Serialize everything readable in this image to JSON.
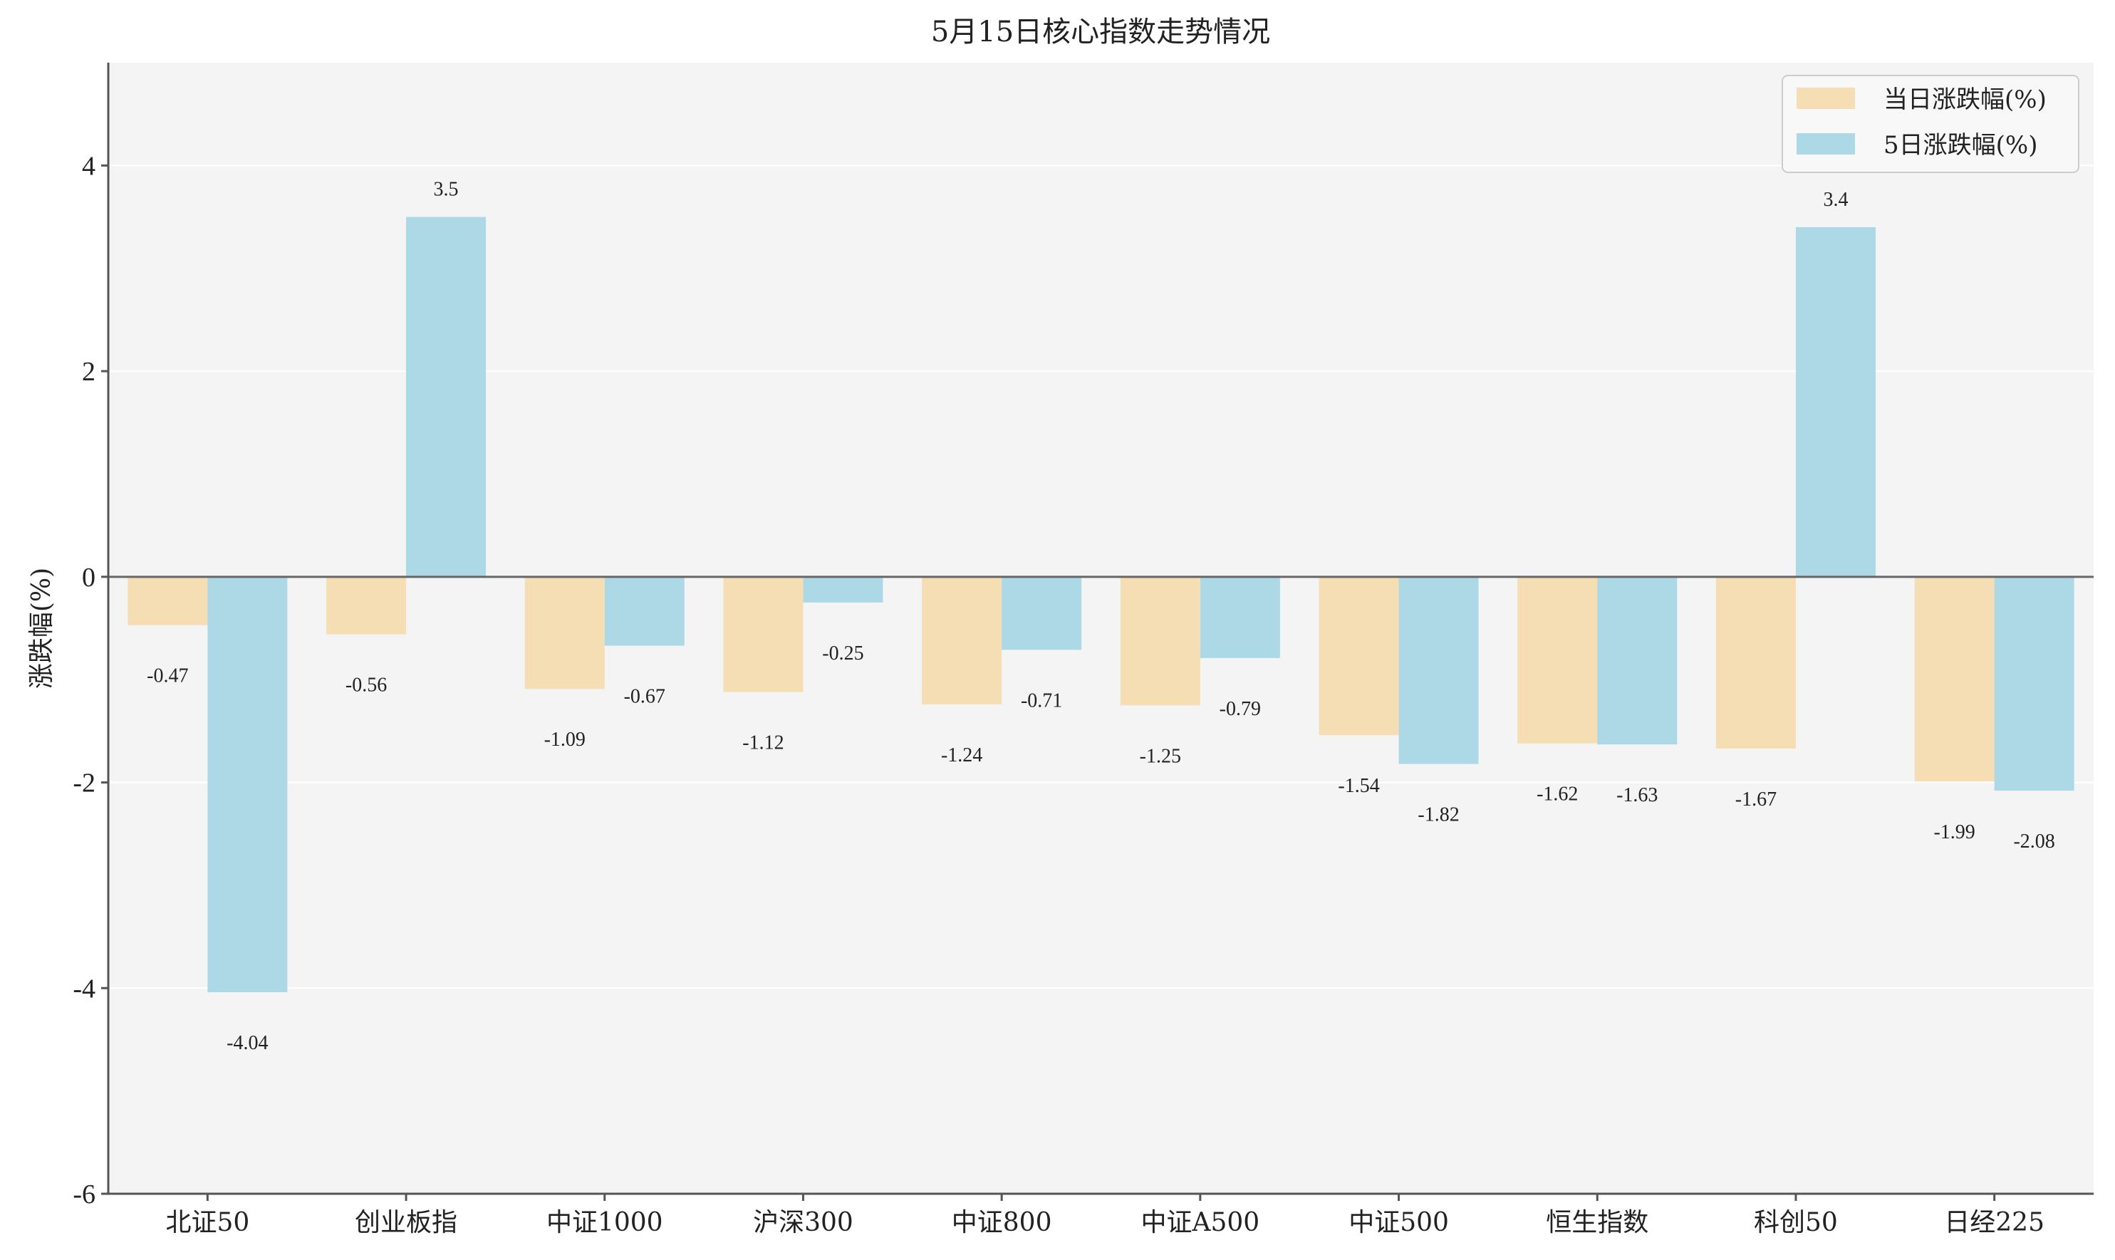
{
  "chart_data": {
    "type": "bar",
    "title": "5月15日核心指数走势情况",
    "ylabel": "涨跌幅(%)",
    "ylim": [
      -6,
      5
    ],
    "yticks": [
      -6,
      -4,
      -2,
      0,
      2,
      4
    ],
    "grid": true,
    "legend_position": "top-right",
    "categories": [
      "北证50",
      "创业板指",
      "中证1000",
      "沪深300",
      "中证800",
      "中证A500",
      "中证500",
      "恒生指数",
      "科创50",
      "日经225"
    ],
    "series": [
      {
        "name": "当日涨跌幅(%)",
        "color": "#f5deb3",
        "values": [
          -0.47,
          -0.56,
          -1.09,
          -1.12,
          -1.24,
          -1.25,
          -1.54,
          -1.62,
          -1.67,
          -1.99
        ]
      },
      {
        "name": "5日涨跌幅(%)",
        "color": "#add8e6",
        "values": [
          -4.04,
          3.5,
          -0.67,
          -0.25,
          -0.71,
          -0.79,
          -1.82,
          -1.63,
          3.4,
          -2.08
        ]
      }
    ],
    "colors": {
      "background": "#f4f4f4",
      "grid": "#ffffff",
      "axis": "#555555",
      "zero_line": "#666666"
    }
  }
}
